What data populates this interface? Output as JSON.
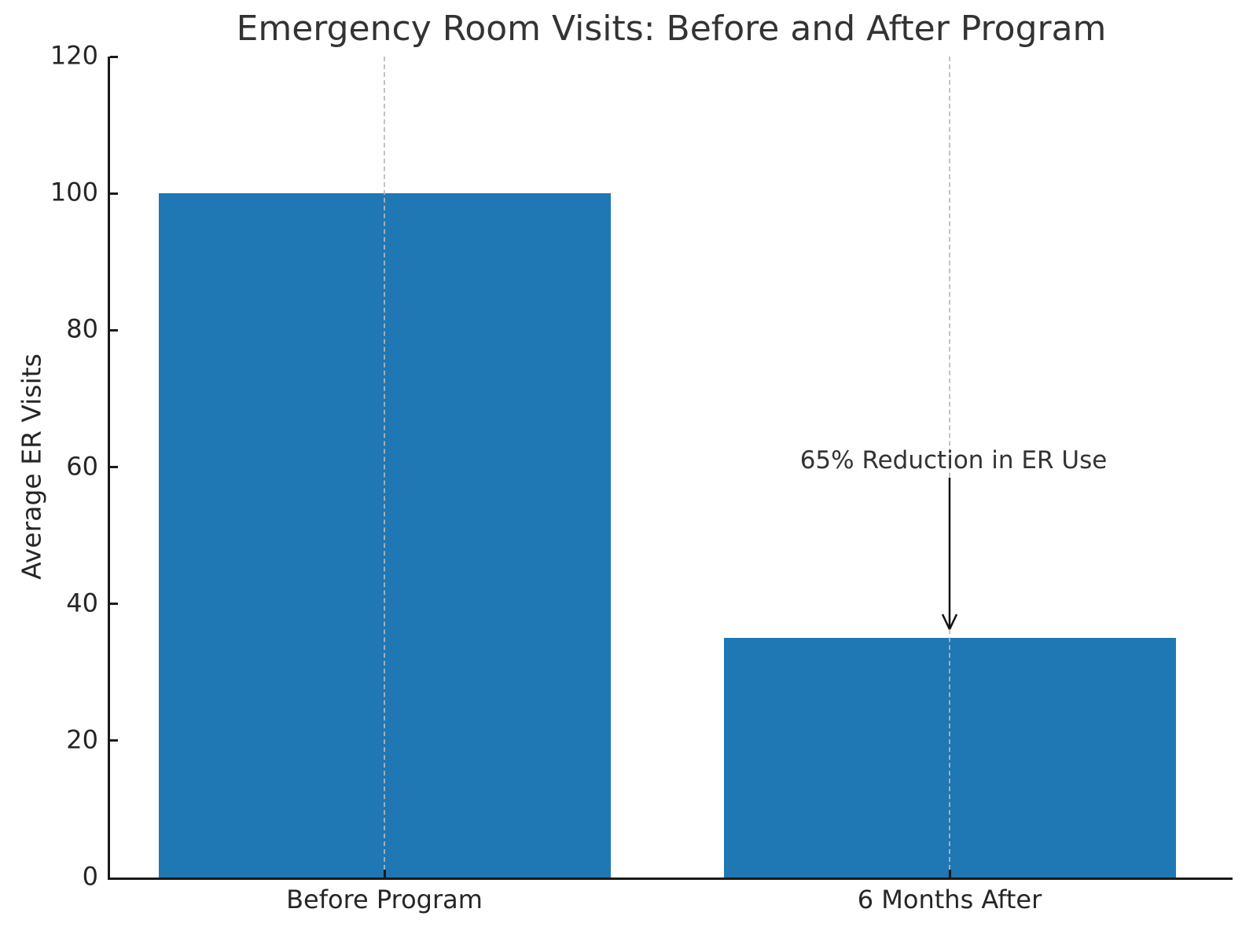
{
  "chart_data": {
    "type": "bar",
    "title": "Emergency Room Visits: Before and After Program",
    "ylabel": "Average ER Visits",
    "xlabel": "",
    "categories": [
      "Before Program",
      "6 Months After"
    ],
    "values": [
      100,
      35
    ],
    "ylim": [
      0,
      120
    ],
    "yticks": [
      0,
      20,
      40,
      60,
      80,
      100,
      120
    ],
    "bar_color": "#1f77b4",
    "grid": "vertical dashed lines at bar centers",
    "legend": "none",
    "annotation": {
      "text": "65% Reduction in ER Use",
      "target_category": "6 Months After",
      "text_value": 61,
      "arrow_tip_value": 36
    }
  },
  "style": {
    "spine_color": "#1a1a1a",
    "text_color": "#262626",
    "title_color": "#333333",
    "grid_color": "#b9b9b9",
    "background": "#ffffff"
  }
}
